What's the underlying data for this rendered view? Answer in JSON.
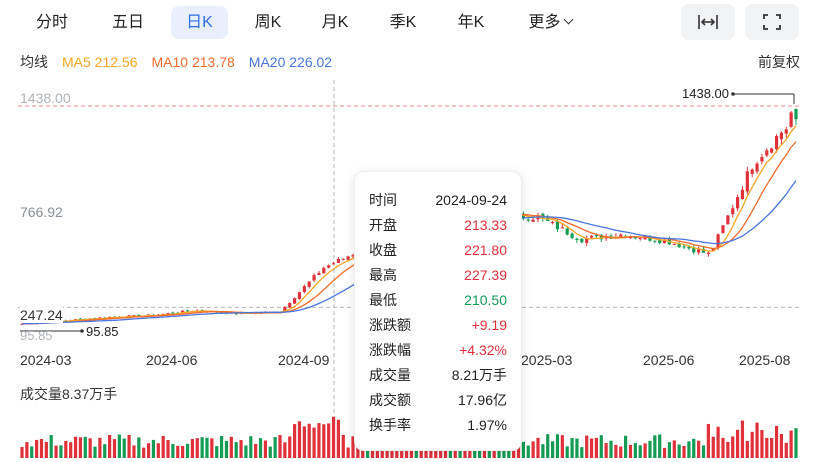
{
  "tabs": [
    {
      "label": "分时",
      "active": false
    },
    {
      "label": "五日",
      "active": false
    },
    {
      "label": "日K",
      "active": true
    },
    {
      "label": "周K",
      "active": false
    },
    {
      "label": "月K",
      "active": false
    },
    {
      "label": "季K",
      "active": false
    },
    {
      "label": "年K",
      "active": false
    },
    {
      "label": "更多",
      "active": false
    }
  ],
  "tools": {
    "fit_icon": "horizontal-fit-icon",
    "fullscreen_icon": "fullscreen-icon"
  },
  "ma": {
    "title": "均线",
    "ma5": "MA5 212.56",
    "ma10": "MA10 213.78",
    "ma20": "MA20 226.02",
    "adjust": "前复权"
  },
  "colors": {
    "up": "#e0313b",
    "down": "#149c55",
    "ma5": "#f5a623",
    "ma10": "#f26b2e",
    "ma20": "#4a76e0",
    "accent": "#2f6fe4"
  },
  "axis": {
    "price_high": "1438.00",
    "price_mid": "766.92",
    "price_low": "247.24",
    "price_min": "95.85",
    "dates": [
      "2024-03",
      "2024-06",
      "2024-09",
      "2025-03",
      "2025-06",
      "2025-08"
    ]
  },
  "markers": {
    "high": "1438.00",
    "low": "95.85"
  },
  "volume": {
    "label": "成交量8.37万手"
  },
  "tooltip": {
    "rows": [
      {
        "k": "时间",
        "v": "2024-09-24",
        "c": "dark"
      },
      {
        "k": "开盘",
        "v": "213.33",
        "c": "red"
      },
      {
        "k": "收盘",
        "v": "221.80",
        "c": "red"
      },
      {
        "k": "最高",
        "v": "227.39",
        "c": "red"
      },
      {
        "k": "最低",
        "v": "210.50",
        "c": "green"
      },
      {
        "k": "涨跌额",
        "v": "+9.19",
        "c": "red"
      },
      {
        "k": "涨跌幅",
        "v": "+4.32%",
        "c": "red"
      },
      {
        "k": "成交量",
        "v": "8.21万手",
        "c": "dark"
      },
      {
        "k": "成交额",
        "v": "17.96亿",
        "c": "dark"
      },
      {
        "k": "换手率",
        "v": "1.97%",
        "c": "dark"
      }
    ]
  },
  "chart_data": {
    "type": "candlestick",
    "price_axis": {
      "max": 1438.0,
      "mid": 766.92,
      "low": 247.24,
      "min": 95.85
    },
    "date_ticks": [
      "2024-03",
      "2024-06",
      "2024-09",
      "2025-03",
      "2025-06",
      "2025-08"
    ],
    "ma_values": {
      "MA5": 212.56,
      "MA10": 213.78,
      "MA20": 226.02
    },
    "approx_close_path": [
      [
        "2024-03",
        150
      ],
      [
        "2024-04",
        170
      ],
      [
        "2024-05",
        190
      ],
      [
        "2024-06",
        200
      ],
      [
        "2024-07",
        230
      ],
      [
        "2024-08",
        210
      ],
      [
        "2024-09",
        221.8
      ],
      [
        "2024-10",
        480
      ],
      [
        "2024-11",
        600
      ],
      [
        "2024-12",
        700
      ],
      [
        "2025-01",
        760
      ],
      [
        "2025-02",
        800
      ],
      [
        "2025-03",
        780
      ],
      [
        "2025-04",
        650
      ],
      [
        "2025-05",
        680
      ],
      [
        "2025-06",
        640
      ],
      [
        "2025-07",
        560
      ],
      [
        "2025-08",
        1100
      ],
      [
        "2025-08-end",
        1380
      ]
    ]
  }
}
